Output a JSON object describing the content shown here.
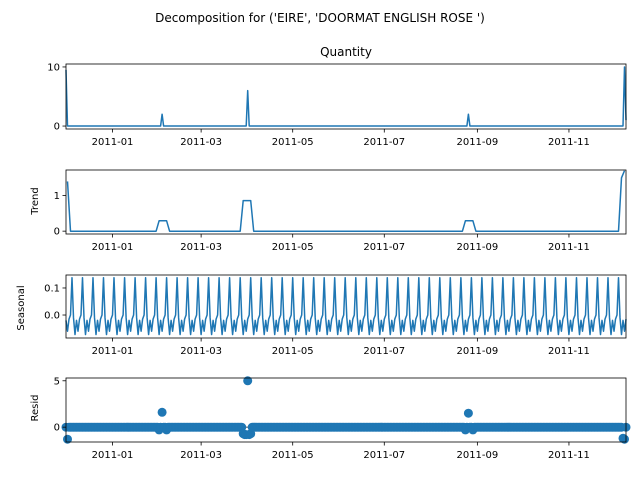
{
  "figure": {
    "suptitle": "Decomposition for ('EIRE', 'DOORMAT ENGLISH ROSE ')"
  },
  "chart_data": [
    {
      "type": "line",
      "title": "Quantity",
      "ylabel": "",
      "xlim": [
        "2010-12-01",
        "2011-12-09"
      ],
      "ylim": [
        -0.5,
        10.5
      ],
      "yticks": [
        0,
        10
      ],
      "xticks": [
        "2011-01",
        "2011-03",
        "2011-05",
        "2011-07",
        "2011-09",
        "2011-11"
      ],
      "series": [
        {
          "points": [
            [
              "2010-12-01",
              9.5
            ],
            [
              "2010-12-02",
              0
            ],
            [
              "2011-02-02",
              0
            ],
            [
              "2011-02-03",
              2
            ],
            [
              "2011-02-04",
              0
            ],
            [
              "2011-03-31",
              0
            ],
            [
              "2011-04-01",
              6
            ],
            [
              "2011-04-02",
              0
            ],
            [
              "2011-08-25",
              0
            ],
            [
              "2011-08-26",
              2
            ],
            [
              "2011-08-27",
              0
            ],
            [
              "2011-12-07",
              0
            ],
            [
              "2011-12-08",
              10
            ],
            [
              "2011-12-09",
              1
            ]
          ]
        }
      ]
    },
    {
      "type": "line",
      "title": "",
      "ylabel": "Trend",
      "xlim": [
        "2010-12-01",
        "2011-12-09"
      ],
      "ylim": [
        -0.08,
        1.72
      ],
      "yticks": [
        0,
        1
      ],
      "xticks": [
        "2011-01",
        "2011-03",
        "2011-05",
        "2011-07",
        "2011-09",
        "2011-11"
      ],
      "series": [
        {
          "points": [
            [
              "2010-12-02",
              1.4
            ],
            [
              "2010-12-04",
              0
            ],
            [
              "2011-01-30",
              0
            ],
            [
              "2011-02-01",
              0.29
            ],
            [
              "2011-02-06",
              0.29
            ],
            [
              "2011-02-08",
              0
            ],
            [
              "2011-03-27",
              0
            ],
            [
              "2011-03-29",
              0.86
            ],
            [
              "2011-04-03",
              0.86
            ],
            [
              "2011-04-05",
              0
            ],
            [
              "2011-08-22",
              0
            ],
            [
              "2011-08-24",
              0.29
            ],
            [
              "2011-08-29",
              0.29
            ],
            [
              "2011-08-31",
              0
            ],
            [
              "2011-12-04",
              0
            ],
            [
              "2011-12-06",
              1.5
            ],
            [
              "2011-12-08",
              1.7
            ]
          ]
        }
      ]
    },
    {
      "type": "line",
      "title": "",
      "ylabel": "Seasonal",
      "xlim": [
        "2010-12-01",
        "2011-12-09"
      ],
      "ylim": [
        -0.085,
        0.148
      ],
      "yticks": [
        0,
        0.1
      ],
      "ytick_labels": [
        "0.0",
        "0.1"
      ],
      "xticks": [
        "2011-01",
        "2011-03",
        "2011-05",
        "2011-07",
        "2011-09",
        "2011-11"
      ],
      "period_days": 7,
      "series": [
        {
          "weekly_pattern": [
            -0.02,
            -0.06,
            -0.015,
            0.0,
            0.138,
            -0.01,
            -0.072
          ]
        }
      ]
    },
    {
      "type": "scatter",
      "title": "",
      "ylabel": "Resid",
      "xlim": [
        "2010-12-01",
        "2011-12-09"
      ],
      "ylim": [
        -1.6,
        5.3
      ],
      "yticks": [
        0,
        5
      ],
      "xticks": [
        "2011-01",
        "2011-03",
        "2011-05",
        "2011-07",
        "2011-09",
        "2011-11"
      ],
      "baseline": 0,
      "outliers": [
        [
          "2010-12-02",
          -1.3
        ],
        [
          "2011-02-03",
          1.6
        ],
        [
          "2011-02-01",
          -0.3
        ],
        [
          "2011-02-06",
          -0.3
        ],
        [
          "2011-03-29",
          -0.7
        ],
        [
          "2011-03-30",
          -0.8
        ],
        [
          "2011-03-31",
          -0.8
        ],
        [
          "2011-04-01",
          5.0
        ],
        [
          "2011-04-02",
          -0.8
        ],
        [
          "2011-04-03",
          -0.7
        ],
        [
          "2011-08-24",
          -0.3
        ],
        [
          "2011-08-26",
          1.5
        ],
        [
          "2011-08-29",
          -0.3
        ],
        [
          "2011-12-07",
          -1.2
        ],
        [
          "2011-12-08",
          -1.3
        ]
      ]
    }
  ]
}
